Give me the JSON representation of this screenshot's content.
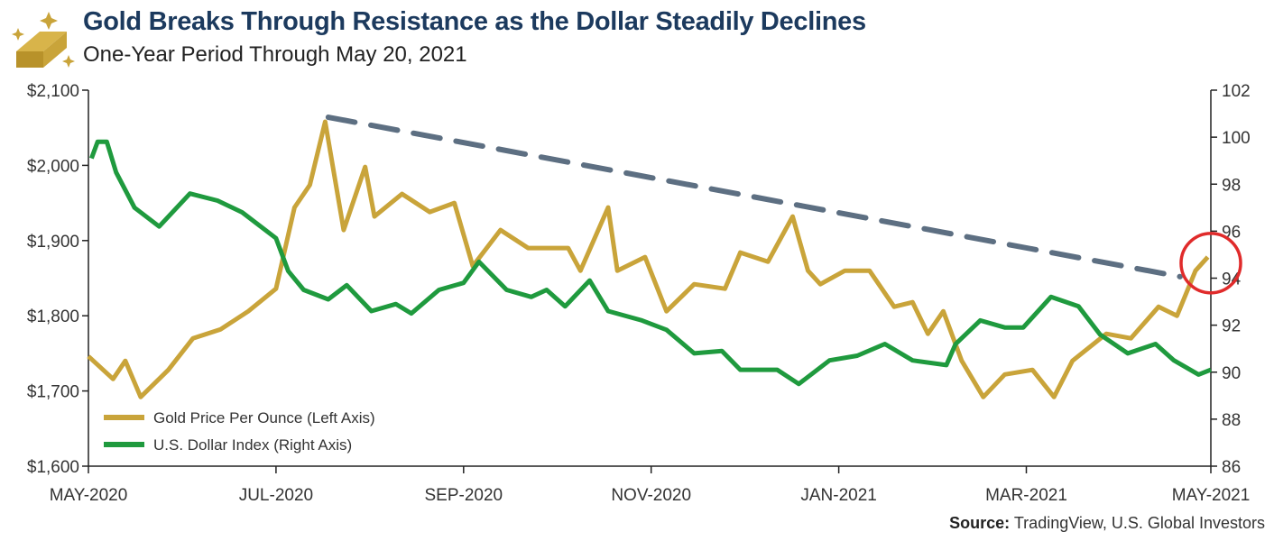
{
  "header": {
    "title": "Gold Breaks Through Resistance as the Dollar Steadily Declines",
    "subtitle": "One-Year Period Through May 20, 2021",
    "logo_icon": "gold-bar-icon"
  },
  "footer": {
    "source_label": "Source:",
    "source_text": "TradingView, U.S. Global Investors"
  },
  "chart_data": {
    "type": "line",
    "title": "Gold Breaks Through Resistance as the Dollar Steadily Declines",
    "subtitle": "One-Year Period Through May 20, 2021",
    "x_range": [
      "2020-05-20",
      "2021-05-20"
    ],
    "x_ticks": [
      {
        "date": "2020-05-20",
        "label": "MAY-2020"
      },
      {
        "date": "2020-07-20",
        "label": "JUL-2020"
      },
      {
        "date": "2020-09-19",
        "label": "SEP-2020"
      },
      {
        "date": "2020-11-19",
        "label": "NOV-2020"
      },
      {
        "date": "2021-01-19",
        "label": "JAN-2021"
      },
      {
        "date": "2021-03-21",
        "label": "MAR-2021"
      },
      {
        "date": "2021-05-20",
        "label": "MAY-2021"
      }
    ],
    "left_axis": {
      "ylim": [
        1600,
        2100
      ],
      "ticks": [
        1600,
        1700,
        1800,
        1900,
        2000,
        2100
      ],
      "tick_labels": [
        "$1,600",
        "$1,700",
        "$1,800",
        "$1,900",
        "$2,000",
        "$2,100"
      ]
    },
    "right_axis": {
      "ylim": [
        86,
        102
      ],
      "ticks": [
        86,
        88,
        90,
        92,
        94,
        96,
        98,
        100,
        102
      ],
      "tick_labels": [
        "86",
        "88",
        "90",
        "92",
        "94",
        "96",
        "98",
        "100",
        "102"
      ]
    },
    "grid": false,
    "legend_position": "bottom-left",
    "series": [
      {
        "name": "Gold Price Per Ounce (Left Axis)",
        "axis": "left",
        "color": "#c9a43a",
        "points": [
          [
            "2020-05-20",
            1746
          ],
          [
            "2020-05-28",
            1716
          ],
          [
            "2020-06-01",
            1740
          ],
          [
            "2020-06-06",
            1692
          ],
          [
            "2020-06-15",
            1728
          ],
          [
            "2020-06-23",
            1770
          ],
          [
            "2020-07-02",
            1782
          ],
          [
            "2020-07-11",
            1806
          ],
          [
            "2020-07-20",
            1836
          ],
          [
            "2020-07-26",
            1944
          ],
          [
            "2020-07-31",
            1974
          ],
          [
            "2020-08-05",
            2058
          ],
          [
            "2020-08-11",
            1914
          ],
          [
            "2020-08-18",
            1998
          ],
          [
            "2020-08-21",
            1932
          ],
          [
            "2020-08-30",
            1962
          ],
          [
            "2020-09-08",
            1938
          ],
          [
            "2020-09-16",
            1950
          ],
          [
            "2020-09-22",
            1866
          ],
          [
            "2020-10-01",
            1914
          ],
          [
            "2020-10-10",
            1890
          ],
          [
            "2020-10-23",
            1890
          ],
          [
            "2020-10-27",
            1860
          ],
          [
            "2020-11-05",
            1944
          ],
          [
            "2020-11-08",
            1860
          ],
          [
            "2020-11-17",
            1878
          ],
          [
            "2020-11-24",
            1806
          ],
          [
            "2020-12-03",
            1842
          ],
          [
            "2020-12-13",
            1836
          ],
          [
            "2020-12-18",
            1884
          ],
          [
            "2020-12-27",
            1872
          ],
          [
            "2021-01-04",
            1932
          ],
          [
            "2021-01-09",
            1860
          ],
          [
            "2021-01-13",
            1842
          ],
          [
            "2021-01-21",
            1860
          ],
          [
            "2021-01-29",
            1860
          ],
          [
            "2021-02-06",
            1812
          ],
          [
            "2021-02-12",
            1818
          ],
          [
            "2021-02-17",
            1776
          ],
          [
            "2021-02-22",
            1806
          ],
          [
            "2021-02-28",
            1740
          ],
          [
            "2021-03-07",
            1692
          ],
          [
            "2021-03-14",
            1722
          ],
          [
            "2021-03-23",
            1728
          ],
          [
            "2021-03-30",
            1692
          ],
          [
            "2021-04-05",
            1740
          ],
          [
            "2021-04-16",
            1776
          ],
          [
            "2021-04-24",
            1770
          ],
          [
            "2021-05-03",
            1812
          ],
          [
            "2021-05-09",
            1800
          ],
          [
            "2021-05-15",
            1860
          ],
          [
            "2021-05-19",
            1878
          ]
        ]
      },
      {
        "name": "U.S. Dollar Index (Right Axis)",
        "axis": "right",
        "color": "#1f9a3e",
        "points": [
          [
            "2020-05-21",
            99.1
          ],
          [
            "2020-05-23",
            99.8
          ],
          [
            "2020-05-26",
            99.8
          ],
          [
            "2020-05-29",
            98.5
          ],
          [
            "2020-06-04",
            97.0
          ],
          [
            "2020-06-12",
            96.2
          ],
          [
            "2020-06-22",
            97.6
          ],
          [
            "2020-07-01",
            97.3
          ],
          [
            "2020-07-09",
            96.8
          ],
          [
            "2020-07-20",
            95.7
          ],
          [
            "2020-07-24",
            94.3
          ],
          [
            "2020-07-29",
            93.5
          ],
          [
            "2020-08-06",
            93.1
          ],
          [
            "2020-08-12",
            93.7
          ],
          [
            "2020-08-20",
            92.6
          ],
          [
            "2020-08-28",
            92.9
          ],
          [
            "2020-09-02",
            92.5
          ],
          [
            "2020-09-11",
            93.5
          ],
          [
            "2020-09-19",
            93.8
          ],
          [
            "2020-09-24",
            94.7
          ],
          [
            "2020-10-03",
            93.5
          ],
          [
            "2020-10-11",
            93.2
          ],
          [
            "2020-10-16",
            93.5
          ],
          [
            "2020-10-22",
            92.8
          ],
          [
            "2020-10-30",
            93.9
          ],
          [
            "2020-11-05",
            92.6
          ],
          [
            "2020-11-16",
            92.2
          ],
          [
            "2020-11-24",
            91.8
          ],
          [
            "2020-12-03",
            90.8
          ],
          [
            "2020-12-12",
            90.9
          ],
          [
            "2020-12-18",
            90.1
          ],
          [
            "2020-12-30",
            90.1
          ],
          [
            "2021-01-06",
            89.5
          ],
          [
            "2021-01-16",
            90.5
          ],
          [
            "2021-01-25",
            90.7
          ],
          [
            "2021-02-03",
            91.2
          ],
          [
            "2021-02-12",
            90.5
          ],
          [
            "2021-02-23",
            90.3
          ],
          [
            "2021-02-26",
            91.2
          ],
          [
            "2021-03-06",
            92.2
          ],
          [
            "2021-03-14",
            91.9
          ],
          [
            "2021-03-20",
            91.9
          ],
          [
            "2021-03-29",
            93.2
          ],
          [
            "2021-04-07",
            92.8
          ],
          [
            "2021-04-14",
            91.6
          ],
          [
            "2021-04-23",
            90.8
          ],
          [
            "2021-05-02",
            91.2
          ],
          [
            "2021-05-08",
            90.5
          ],
          [
            "2021-05-16",
            89.9
          ],
          [
            "2021-05-20",
            90.1
          ]
        ]
      }
    ],
    "annotations": [
      {
        "type": "resistance-trendline",
        "style": "dashed",
        "color": "#5d6f82",
        "axis": "left",
        "from": [
          "2020-08-06",
          2064
        ],
        "to": [
          "2021-05-10",
          1852
        ]
      },
      {
        "type": "circle",
        "color": "#e02b2b",
        "axis": "left",
        "center": [
          "2021-05-20",
          1870
        ]
      }
    ]
  }
}
